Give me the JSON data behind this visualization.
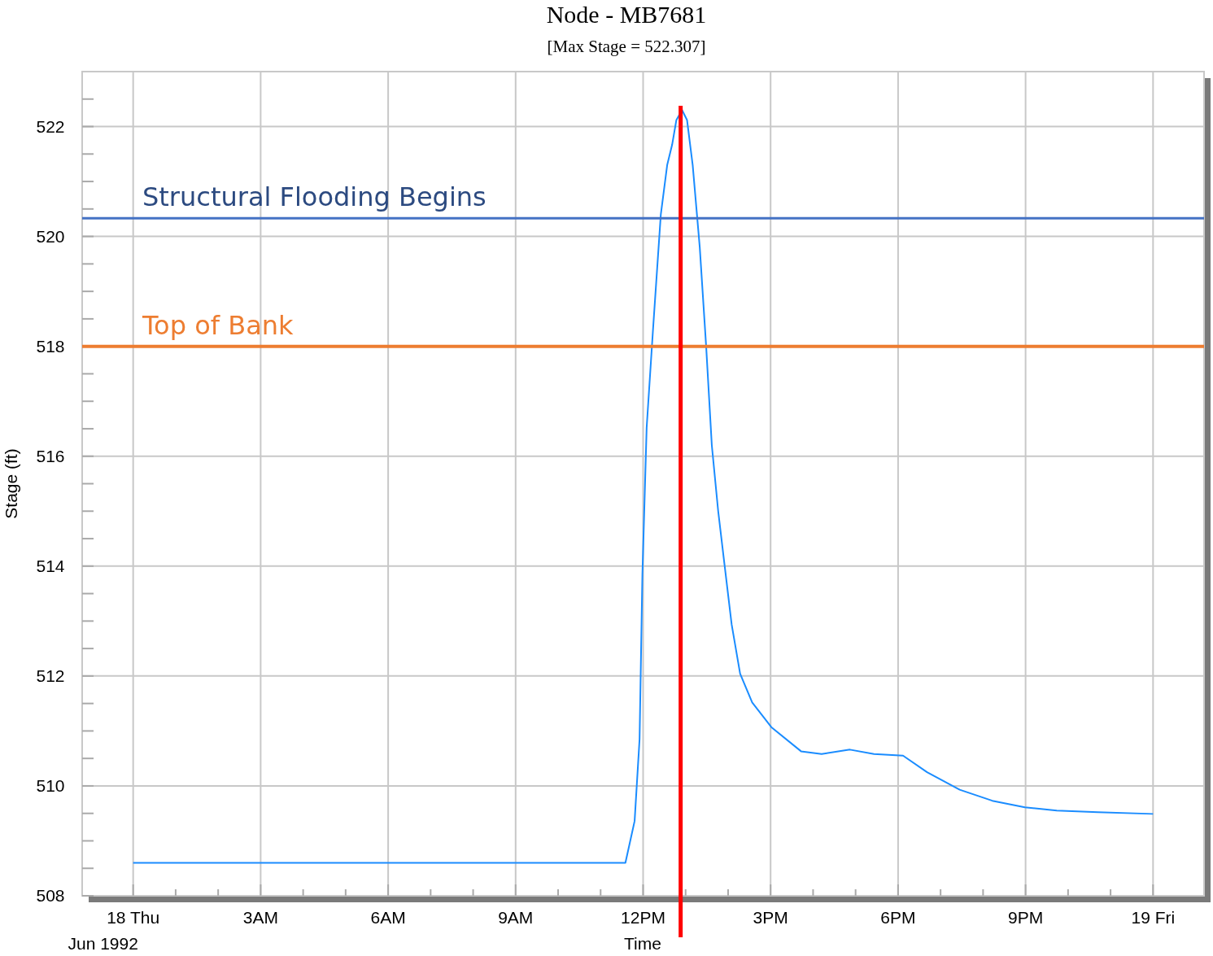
{
  "chart_data": {
    "type": "line",
    "title": "Node - MB7681",
    "subtitle": "[Max Stage = 522.307]",
    "xlabel": "Time",
    "ylabel": "Stage (ft)",
    "annotations": [
      "Jun 1992"
    ],
    "xlim": [
      "1992-06-17T22:48",
      "1992-06-19T01:12"
    ],
    "xticks": [
      {
        "value": "1992-06-18T00:00",
        "label": "18 Thu"
      },
      {
        "value": "1992-06-18T01:00",
        "label": null
      },
      {
        "value": "1992-06-18T02:00",
        "label": null
      },
      {
        "value": "1992-06-18T03:00",
        "label": "3AM"
      },
      {
        "value": "1992-06-18T04:00",
        "label": null
      },
      {
        "value": "1992-06-18T05:00",
        "label": null
      },
      {
        "value": "1992-06-18T06:00",
        "label": "6AM"
      },
      {
        "value": "1992-06-18T07:00",
        "label": null
      },
      {
        "value": "1992-06-18T08:00",
        "label": null
      },
      {
        "value": "1992-06-18T09:00",
        "label": "9AM"
      },
      {
        "value": "1992-06-18T10:00",
        "label": null
      },
      {
        "value": "1992-06-18T11:00",
        "label": null
      },
      {
        "value": "1992-06-18T12:00",
        "label": "12PM"
      },
      {
        "value": "1992-06-18T13:00",
        "label": null
      },
      {
        "value": "1992-06-18T14:00",
        "label": null
      },
      {
        "value": "1992-06-18T15:00",
        "label": "3PM"
      },
      {
        "value": "1992-06-18T16:00",
        "label": null
      },
      {
        "value": "1992-06-18T17:00",
        "label": null
      },
      {
        "value": "1992-06-18T18:00",
        "label": "6PM"
      },
      {
        "value": "1992-06-18T19:00",
        "label": null
      },
      {
        "value": "1992-06-18T20:00",
        "label": null
      },
      {
        "value": "1992-06-18T21:00",
        "label": "9PM"
      },
      {
        "value": "1992-06-18T22:00",
        "label": null
      },
      {
        "value": "1992-06-18T23:00",
        "label": null
      },
      {
        "value": "1992-06-19T00:00",
        "label": "19 Fri"
      }
    ],
    "ylim": [
      508,
      523
    ],
    "yticks": [
      508,
      {
        "value": 508.5,
        "label": null
      },
      {
        "value": 509,
        "label": null
      },
      {
        "value": 509.5,
        "label": null
      },
      510,
      {
        "value": 510.5,
        "label": null
      },
      {
        "value": 511,
        "label": null
      },
      {
        "value": 511.5,
        "label": null
      },
      512,
      {
        "value": 512.5,
        "label": null
      },
      {
        "value": 513,
        "label": null
      },
      {
        "value": 513.5,
        "label": null
      },
      514,
      {
        "value": 514.5,
        "label": null
      },
      {
        "value": 515,
        "label": null
      },
      {
        "value": 515.5,
        "label": null
      },
      516,
      {
        "value": 516.5,
        "label": null
      },
      {
        "value": 517,
        "label": null
      },
      {
        "value": 517.5,
        "label": null
      },
      518,
      {
        "value": 518.5,
        "label": null
      },
      {
        "value": 519,
        "label": null
      },
      {
        "value": 519.5,
        "label": null
      },
      520,
      {
        "value": 520.5,
        "label": null
      },
      {
        "value": 521,
        "label": null
      },
      {
        "value": 521.5,
        "label": null
      },
      522,
      {
        "value": 522.5,
        "label": null
      }
    ],
    "grid": true,
    "marker": "none",
    "line_style": "solid",
    "ref_lines": [
      {
        "axis": "y",
        "value": 520.33,
        "label": "Structural Flooding Begins",
        "color": "#4472c4"
      },
      {
        "axis": "y",
        "value": 518,
        "label": "Top of Bank",
        "color": "#ed7d31"
      },
      {
        "axis": "x",
        "value": "1992-06-18T12:53",
        "label": null,
        "color": "#ff0000"
      }
    ],
    "series": [
      {
        "color": "#1a8cff",
        "x": [
          "1992-06-18T00:00",
          "1992-06-18T11:35",
          "1992-06-18T11:48",
          "1992-06-18T11:55",
          "1992-06-18T11:59",
          "1992-06-18T12:05",
          "1992-06-18T12:14",
          "1992-06-18T12:25",
          "1992-06-18T12:34",
          "1992-06-18T12:41",
          "1992-06-18T12:47",
          "1992-06-18T12:55",
          "1992-06-18T13:02",
          "1992-06-18T13:10",
          "1992-06-18T13:20",
          "1992-06-18T13:29",
          "1992-06-18T13:37",
          "1992-06-18T13:46",
          "1992-06-18T13:54",
          "1992-06-18T14:05",
          "1992-06-18T14:17",
          "1992-06-18T14:34",
          "1992-06-18T15:01",
          "1992-06-18T15:43",
          "1992-06-18T16:12",
          "1992-06-18T16:52",
          "1992-06-18T17:26",
          "1992-06-18T18:07",
          "1992-06-18T18:41",
          "1992-06-18T19:27",
          "1992-06-18T20:13",
          "1992-06-18T20:59",
          "1992-06-18T21:44",
          "1992-06-18T22:42",
          "1992-06-19T00:00"
        ],
        "values": [
          508.6,
          508.6,
          509.36,
          510.85,
          513.84,
          516.52,
          518.31,
          520.4,
          521.3,
          521.67,
          522.12,
          522.3,
          522.12,
          521.3,
          519.8,
          518.0,
          516.2,
          515.0,
          514.13,
          512.94,
          512.04,
          511.52,
          511.07,
          510.63,
          510.58,
          510.66,
          510.58,
          510.55,
          510.25,
          509.93,
          509.73,
          509.61,
          509.55,
          509.52,
          509.49
        ]
      }
    ]
  }
}
